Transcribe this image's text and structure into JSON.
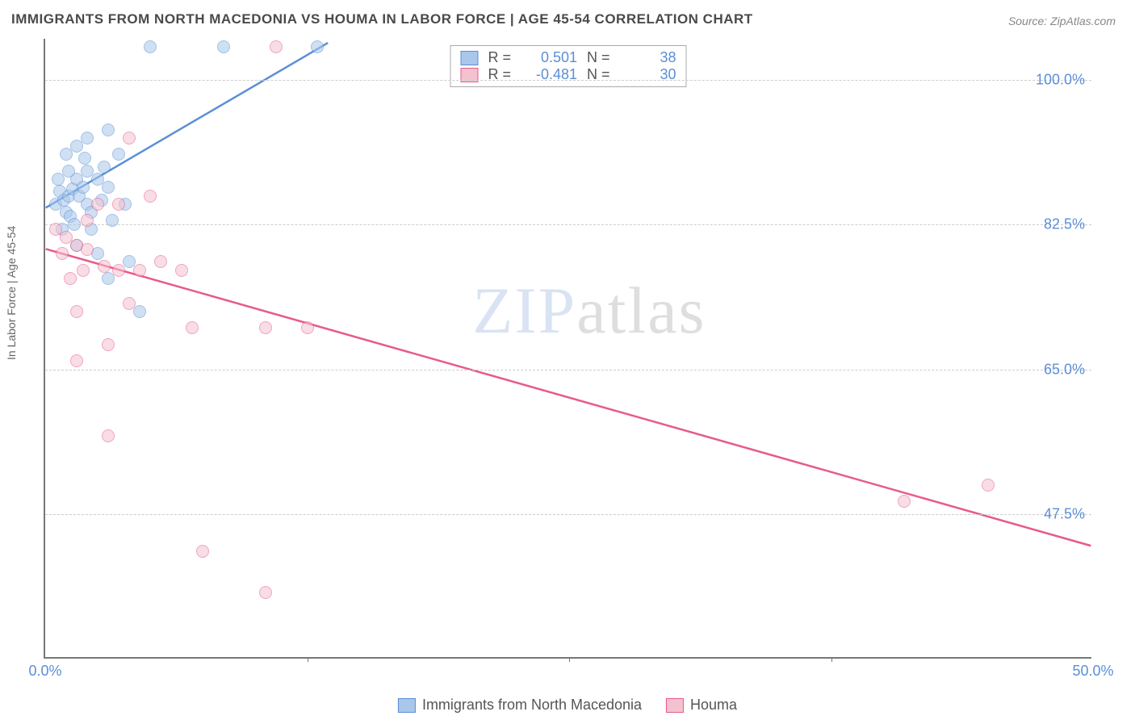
{
  "title": "IMMIGRANTS FROM NORTH MACEDONIA VS HOUMA IN LABOR FORCE | AGE 45-54 CORRELATION CHART",
  "source": "Source: ZipAtlas.com",
  "y_axis_label": "In Labor Force | Age 45-54",
  "watermark": {
    "part1": "ZIP",
    "part2": "atlas"
  },
  "chart": {
    "type": "scatter-with-trendlines",
    "background_color": "#ffffff",
    "grid_color": "#cccccc",
    "axis_color": "#777777",
    "tick_color": "#5b8fd6",
    "xlim": [
      0,
      50
    ],
    "ylim": [
      30,
      105
    ],
    "y_ticks": [
      47.5,
      65.0,
      82.5,
      100.0
    ],
    "y_tick_labels": [
      "47.5%",
      "65.0%",
      "82.5%",
      "100.0%"
    ],
    "x_ticks": [
      0,
      50
    ],
    "x_tick_labels": [
      "0.0%",
      "50.0%"
    ],
    "x_minor_ticks": [
      12.5,
      25,
      37.5
    ],
    "series": [
      {
        "name": "Immigrants from North Macedonia",
        "color_fill": "#a8c7ea",
        "color_stroke": "#5b8fd6",
        "marker_radius": 8,
        "fill_opacity": 0.55,
        "r_value": "0.501",
        "n_value": "38",
        "trend": {
          "x1": 0,
          "y1": 84.5,
          "x2": 13.5,
          "y2": 104.5,
          "width": 2.5
        },
        "points": [
          [
            0.5,
            85
          ],
          [
            0.7,
            86.5
          ],
          [
            0.9,
            85.5
          ],
          [
            1.1,
            86
          ],
          [
            1.3,
            86.8
          ],
          [
            1.0,
            84
          ],
          [
            1.2,
            83.5
          ],
          [
            1.6,
            86
          ],
          [
            1.5,
            88
          ],
          [
            1.8,
            87
          ],
          [
            2.0,
            85
          ],
          [
            2.2,
            84
          ],
          [
            1.4,
            82.5
          ],
          [
            0.8,
            82
          ],
          [
            2.0,
            89
          ],
          [
            2.5,
            88
          ],
          [
            2.8,
            89.5
          ],
          [
            3.0,
            87
          ],
          [
            2.7,
            85.5
          ],
          [
            2.2,
            82
          ],
          [
            1.0,
            91
          ],
          [
            1.5,
            92
          ],
          [
            2.0,
            93
          ],
          [
            3.0,
            94
          ],
          [
            3.5,
            91
          ],
          [
            5.0,
            104
          ],
          [
            8.5,
            104
          ],
          [
            13.0,
            104
          ],
          [
            1.5,
            80
          ],
          [
            2.5,
            79
          ],
          [
            4.0,
            78
          ],
          [
            3.2,
            83
          ],
          [
            3.8,
            85
          ],
          [
            0.6,
            88
          ],
          [
            1.1,
            89
          ],
          [
            1.9,
            90.5
          ],
          [
            4.5,
            72
          ],
          [
            3.0,
            76
          ]
        ]
      },
      {
        "name": "Houma",
        "color_fill": "#f4c2cf",
        "color_stroke": "#e85a8a",
        "marker_radius": 8,
        "fill_opacity": 0.55,
        "r_value": "-0.481",
        "n_value": "30",
        "trend": {
          "x1": 0,
          "y1": 79.5,
          "x2": 50,
          "y2": 43.5,
          "width": 2.5
        },
        "points": [
          [
            0.5,
            82
          ],
          [
            1.0,
            81
          ],
          [
            0.8,
            79
          ],
          [
            1.5,
            80
          ],
          [
            1.2,
            76
          ],
          [
            2.0,
            79.5
          ],
          [
            2.5,
            85
          ],
          [
            3.5,
            85
          ],
          [
            5.0,
            86
          ],
          [
            4.0,
            93
          ],
          [
            11.0,
            104
          ],
          [
            1.8,
            77
          ],
          [
            2.8,
            77.5
          ],
          [
            3.5,
            77
          ],
          [
            4.5,
            77
          ],
          [
            5.5,
            78
          ],
          [
            6.5,
            77
          ],
          [
            1.5,
            72
          ],
          [
            4.0,
            73
          ],
          [
            7.0,
            70
          ],
          [
            10.5,
            70
          ],
          [
            12.5,
            70
          ],
          [
            1.5,
            66
          ],
          [
            3.0,
            68
          ],
          [
            3.0,
            57
          ],
          [
            7.5,
            43
          ],
          [
            10.5,
            38
          ],
          [
            41,
            49
          ],
          [
            45,
            51
          ],
          [
            2.0,
            83
          ]
        ]
      }
    ],
    "legend_top_labels": {
      "r_prefix": "R =",
      "n_prefix": "N ="
    },
    "legend_bottom": [
      {
        "label": "Immigrants from North Macedonia",
        "swatch_fill": "#a8c7ea",
        "swatch_stroke": "#5b8fd6"
      },
      {
        "label": "Houma",
        "swatch_fill": "#f4c2cf",
        "swatch_stroke": "#e85a8a"
      }
    ]
  }
}
